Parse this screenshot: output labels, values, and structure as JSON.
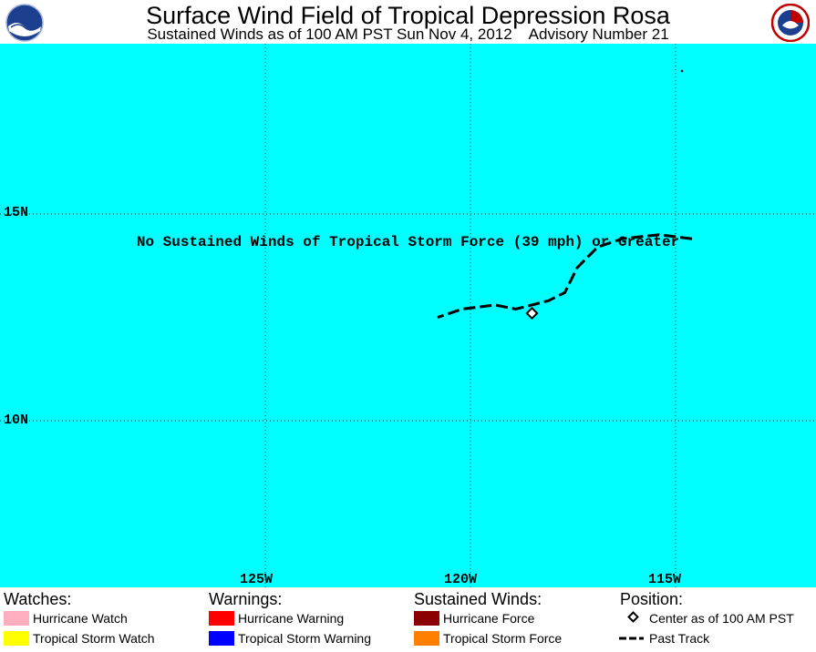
{
  "header": {
    "title": "Surface Wind Field of Tropical Depression Rosa",
    "subtitle": "Sustained Winds as of 100 AM PST Sun Nov 4, 2012    Advisory Number 21",
    "left_logo": "NOAA",
    "right_logo": "NATIONAL WEATHER SERVICE"
  },
  "map": {
    "background_color": "#00ffff",
    "lat_labels": [
      "15N",
      "10N"
    ],
    "lon_labels": [
      "125W",
      "120W",
      "115W"
    ],
    "note": "No Sustained Winds of Tropical Storm Force (39 mph) or Greater",
    "storm_center": {
      "lat": 12.6,
      "lon": -118.5
    },
    "past_track": [
      {
        "lat": 14.4,
        "lon": -114.6
      },
      {
        "lat": 14.5,
        "lon": -115.4
      },
      {
        "lat": 14.4,
        "lon": -116.3
      },
      {
        "lat": 14.2,
        "lon": -116.9
      },
      {
        "lat": 13.7,
        "lon": -117.4
      },
      {
        "lat": 13.1,
        "lon": -117.7
      },
      {
        "lat": 12.9,
        "lon": -118.1
      },
      {
        "lat": 12.7,
        "lon": -118.9
      },
      {
        "lat": 12.8,
        "lon": -119.4
      },
      {
        "lat": 12.7,
        "lon": -120.2
      },
      {
        "lat": 12.5,
        "lon": -120.8
      }
    ]
  },
  "legend": {
    "watches": {
      "heading": "Watches:",
      "items": [
        {
          "label": "Hurricane Watch",
          "color": "#ffaec0"
        },
        {
          "label": "Tropical Storm Watch",
          "color": "#ffff00"
        }
      ]
    },
    "warnings": {
      "heading": "Warnings:",
      "items": [
        {
          "label": "Hurricane Warning",
          "color": "#ff0000"
        },
        {
          "label": "Tropical Storm Warning",
          "color": "#0000ff"
        }
      ]
    },
    "winds": {
      "heading": "Sustained Winds:",
      "items": [
        {
          "label": "Hurricane Force",
          "color": "#8b0000"
        },
        {
          "label": "Tropical Storm Force",
          "color": "#ff8000"
        }
      ]
    },
    "position": {
      "heading": "Position:",
      "items": [
        {
          "label": "Center as of 100 AM PST",
          "icon": "diamond-icon"
        },
        {
          "label": "Past Track",
          "icon": "dashed-line-icon"
        }
      ]
    }
  }
}
